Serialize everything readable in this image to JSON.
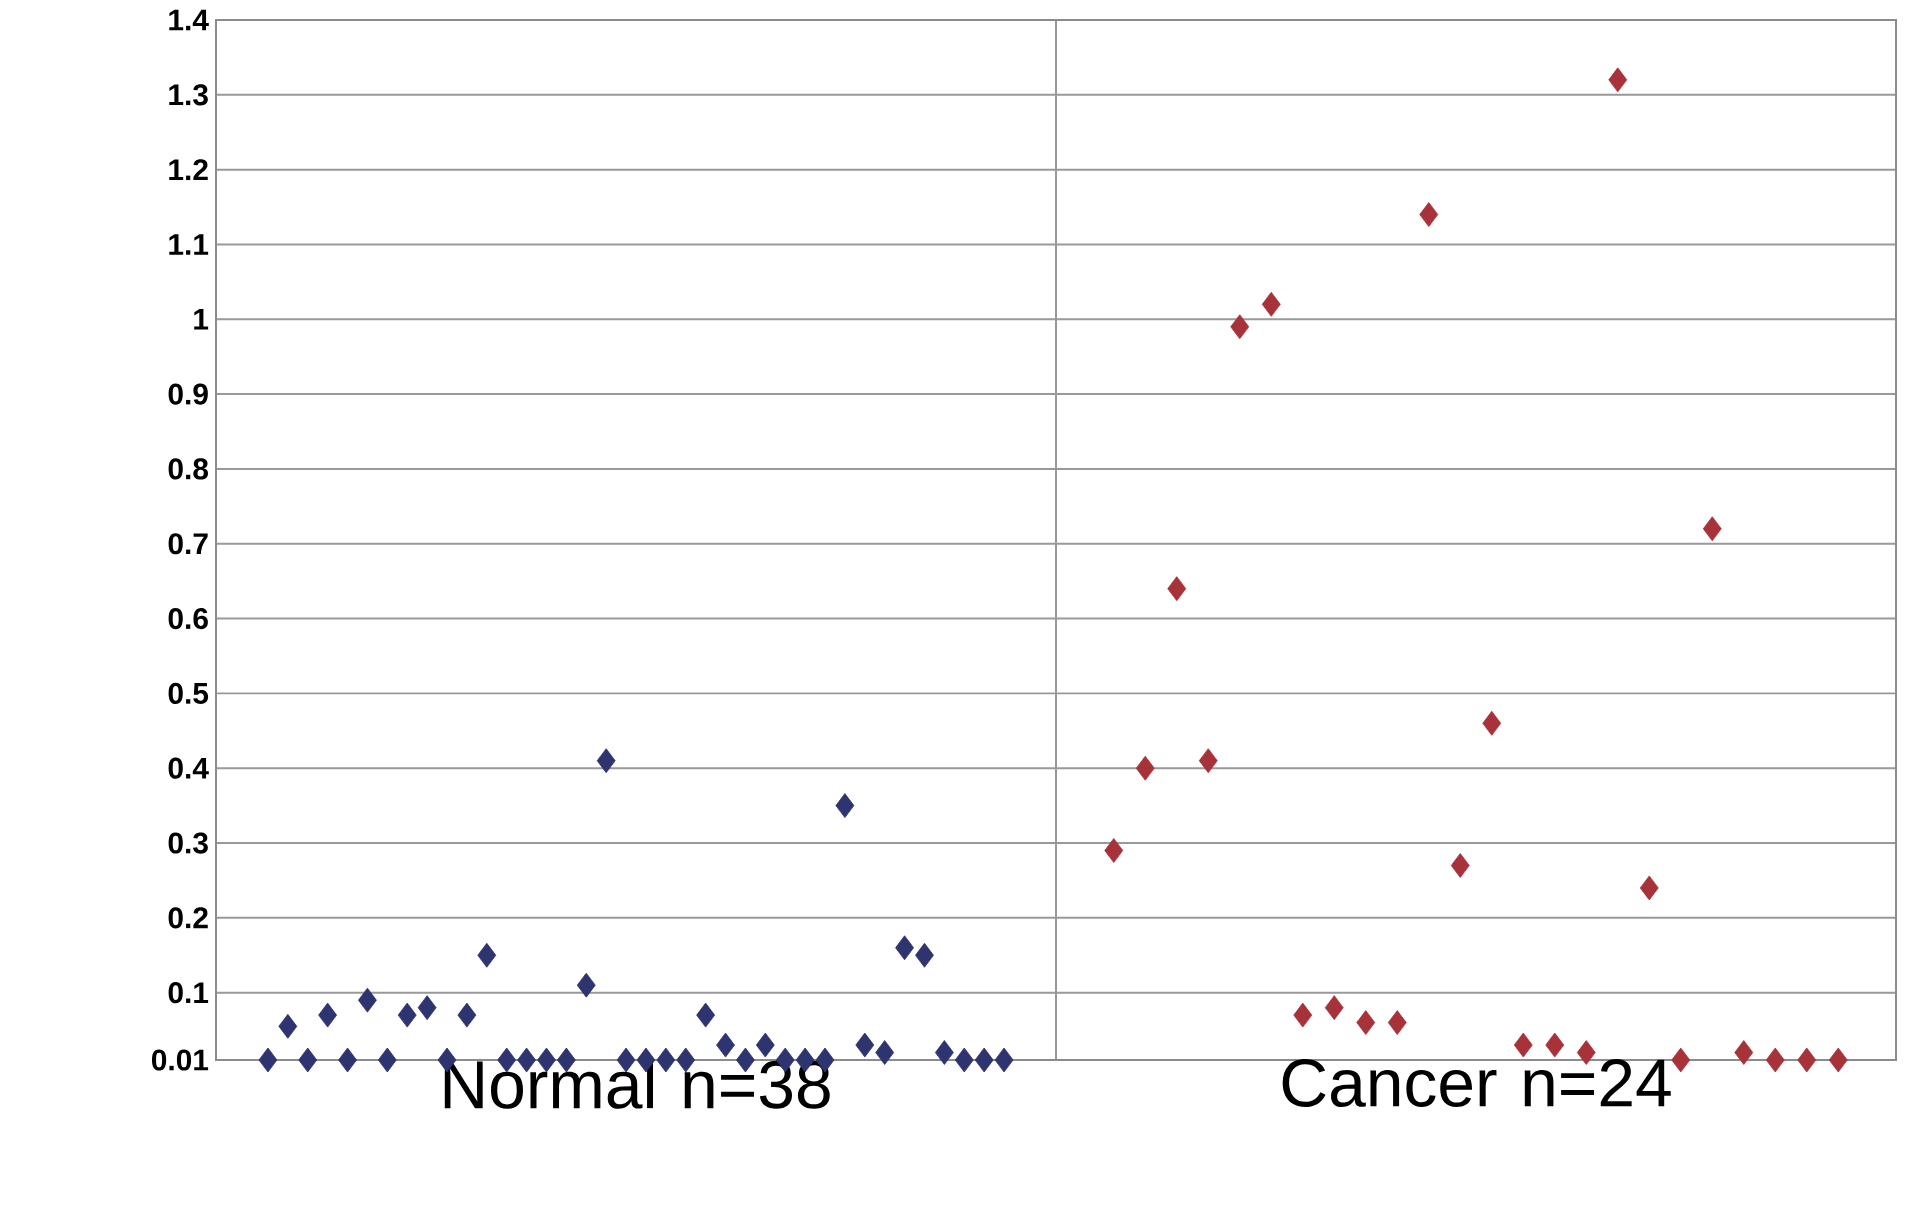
{
  "chart_data": {
    "type": "scatter",
    "marker": "diamond",
    "grid": true,
    "categories": [
      "Normal n=38",
      "Cancer n=24"
    ],
    "ylim": [
      0.01,
      1.4
    ],
    "yticks": [
      0.01,
      0.1,
      0.2,
      0.3,
      0.4,
      0.5,
      0.6,
      0.7,
      0.8,
      0.9,
      1,
      1.1,
      1.2,
      1.3,
      1.4
    ],
    "series": [
      {
        "color": "#2e3470",
        "x": [
          "Normal n=38",
          "Normal n=38",
          "Normal n=38",
          "Normal n=38",
          "Normal n=38",
          "Normal n=38",
          "Normal n=38",
          "Normal n=38",
          "Normal n=38",
          "Normal n=38",
          "Normal n=38",
          "Normal n=38",
          "Normal n=38",
          "Normal n=38",
          "Normal n=38",
          "Normal n=38",
          "Normal n=38",
          "Normal n=38",
          "Normal n=38",
          "Normal n=38",
          "Normal n=38",
          "Normal n=38",
          "Normal n=38",
          "Normal n=38",
          "Normal n=38",
          "Normal n=38",
          "Normal n=38",
          "Normal n=38",
          "Normal n=38",
          "Normal n=38",
          "Normal n=38",
          "Normal n=38",
          "Normal n=38",
          "Normal n=38",
          "Normal n=38",
          "Normal n=38",
          "Normal n=38",
          "Normal n=38"
        ],
        "values": [
          0.01,
          0.055,
          0.01,
          0.07,
          0.01,
          0.09,
          0.01,
          0.07,
          0.08,
          0.01,
          0.07,
          0.15,
          0.01,
          0.01,
          0.01,
          0.01,
          0.11,
          0.41,
          0.01,
          0.01,
          0.01,
          0.01,
          0.07,
          0.03,
          0.01,
          0.03,
          0.01,
          0.01,
          0.01,
          0.35,
          0.03,
          0.02,
          0.16,
          0.15,
          0.02,
          0.01,
          0.01,
          0.01
        ]
      },
      {
        "color": "#a8323a",
        "x": [
          "Cancer n=24",
          "Cancer n=24",
          "Cancer n=24",
          "Cancer n=24",
          "Cancer n=24",
          "Cancer n=24",
          "Cancer n=24",
          "Cancer n=24",
          "Cancer n=24",
          "Cancer n=24",
          "Cancer n=24",
          "Cancer n=24",
          "Cancer n=24",
          "Cancer n=24",
          "Cancer n=24",
          "Cancer n=24",
          "Cancer n=24",
          "Cancer n=24",
          "Cancer n=24",
          "Cancer n=24",
          "Cancer n=24",
          "Cancer n=24",
          "Cancer n=24",
          "Cancer n=24"
        ],
        "values": [
          0.29,
          0.4,
          0.64,
          0.41,
          0.99,
          1.02,
          0.07,
          0.08,
          0.06,
          0.06,
          1.14,
          0.27,
          0.46,
          0.03,
          0.03,
          0.02,
          1.32,
          0.24,
          0.01,
          0.72,
          0.02,
          0.01,
          0.01,
          0.01
        ]
      }
    ]
  }
}
